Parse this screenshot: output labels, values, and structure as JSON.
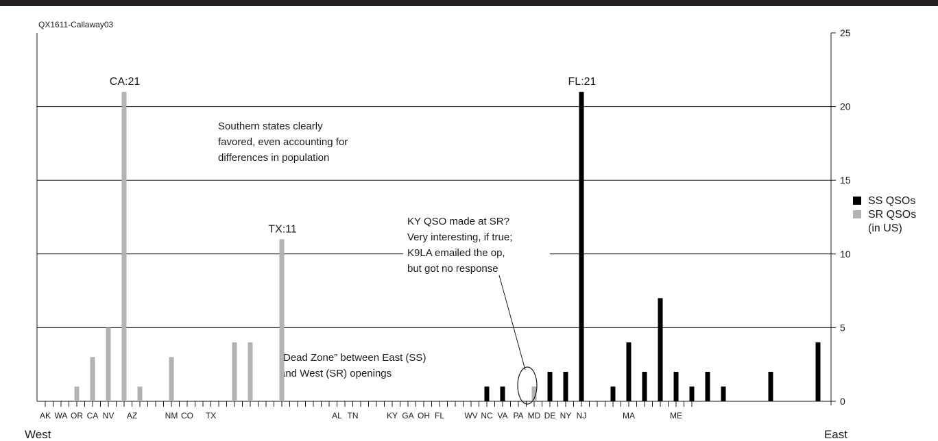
{
  "chart_data": {
    "type": "bar",
    "title": "QX1611-Callaway03",
    "x_direction_labels": {
      "left": "West",
      "right": "East"
    },
    "ylim": [
      0,
      25
    ],
    "y_ticks": [
      0,
      5,
      10,
      15,
      20,
      25
    ],
    "grid": "horizontal",
    "legend_position": "right",
    "colors": {
      "SS QSOs": "#000000",
      "SR QSOs": "#b3b3b3"
    },
    "legend": [
      {
        "label": "SS QSOs",
        "color": "#000000"
      },
      {
        "label": "SR QSOs",
        "sublabel": "(in US)",
        "color": "#b3b3b3"
      }
    ],
    "categories": [
      "AK",
      "",
      "WA",
      "",
      "OR",
      "",
      "CA",
      "",
      "NV",
      "",
      "",
      "AZ",
      "",
      "",
      "",
      "",
      "NM",
      "",
      "CO",
      "",
      "",
      "TX",
      "",
      "",
      "",
      "",
      "",
      "",
      "",
      "",
      "",
      "",
      "",
      "",
      "",
      "",
      "",
      "AL",
      "",
      "TN",
      "",
      "",
      "",
      "",
      "KY",
      "",
      "GA",
      "",
      "OH",
      "",
      "FL",
      "",
      "",
      "",
      "WV",
      "",
      "NC",
      "",
      "VA",
      "",
      "PA",
      "",
      "MD",
      "",
      "DE",
      "",
      "NY",
      "",
      "NJ",
      "",
      "",
      "",
      "",
      "",
      "MA",
      "",
      "",
      "",
      "",
      "",
      "ME",
      "",
      ""
    ],
    "bars": [
      {
        "state": "AK",
        "slot": 1,
        "series": "SR QSOs",
        "value": 1
      },
      {
        "state": "WA",
        "slot": 2,
        "series": "SR QSOs",
        "value": 3
      },
      {
        "state": "OR",
        "slot": 3,
        "series": "SR QSOs",
        "value": 5
      },
      {
        "state": "CA",
        "slot": 4,
        "series": "SR QSOs",
        "value": 21
      },
      {
        "state": "NV",
        "slot": 5,
        "series": "SR QSOs",
        "value": 1
      },
      {
        "state": "AZ",
        "slot": 7,
        "series": "SR QSOs",
        "value": 3
      },
      {
        "state": "NM",
        "slot": 11,
        "series": "SR QSOs",
        "value": 4
      },
      {
        "state": "CO",
        "slot": 12,
        "series": "SR QSOs",
        "value": 4
      },
      {
        "state": "TX",
        "slot": 14,
        "series": "SR QSOs",
        "value": 11
      },
      {
        "state": "AL",
        "slot": 27,
        "series": "SS QSOs",
        "value": 1
      },
      {
        "state": "TN",
        "slot": 28,
        "series": "SS QSOs",
        "value": 1
      },
      {
        "state": "KY",
        "slot": 30,
        "series": "SR QSOs",
        "value": 1
      },
      {
        "state": "GA",
        "slot": 31,
        "series": "SS QSOs",
        "value": 2
      },
      {
        "state": "OH",
        "slot": 32,
        "series": "SS QSOs",
        "value": 2
      },
      {
        "state": "FL",
        "slot": 33,
        "series": "SS QSOs",
        "value": 21
      },
      {
        "state": "WV",
        "slot": 35,
        "series": "SS QSOs",
        "value": 1
      },
      {
        "state": "NC",
        "slot": 36,
        "series": "SS QSOs",
        "value": 4
      },
      {
        "state": "VA",
        "slot": 37,
        "series": "SS QSOs",
        "value": 2
      },
      {
        "state": "PA",
        "slot": 38,
        "series": "SS QSOs",
        "value": 7
      },
      {
        "state": "MD",
        "slot": 39,
        "series": "SS QSOs",
        "value": 2
      },
      {
        "state": "DE",
        "slot": 40,
        "series": "SS QSOs",
        "value": 1
      },
      {
        "state": "NY",
        "slot": 41,
        "series": "SS QSOs",
        "value": 2
      },
      {
        "state": "NJ",
        "slot": 42,
        "series": "SS QSOs",
        "value": 1
      },
      {
        "state": "MA",
        "slot": 45,
        "series": "SS QSOs",
        "value": 2
      },
      {
        "state": "ME",
        "slot": 48,
        "series": "SS QSOs",
        "value": 4
      }
    ],
    "value_labels": [
      {
        "text": "CA:21",
        "state": "CA"
      },
      {
        "text": "TX:11",
        "state": "TX"
      },
      {
        "text": "FL:21",
        "state": "FL"
      }
    ],
    "annotations": {
      "south": [
        "Southern states clearly",
        "favored, even accounting for",
        "differences in population"
      ],
      "ky": [
        "KY QSO made at SR?",
        "Very interesting, if true;",
        "K9LA emailed the op,",
        "but got no response"
      ],
      "dead_zone": [
        "“Dead Zone” between East (SS)",
        "and West (SR) openings"
      ]
    }
  }
}
